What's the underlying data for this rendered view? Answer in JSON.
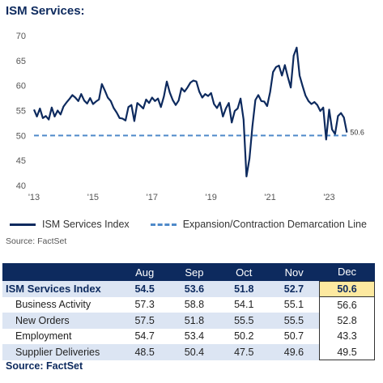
{
  "title": "ISM Services:",
  "chart_data": {
    "type": "line",
    "xlim": [
      2013,
      2023.7
    ],
    "ylim": [
      40,
      70
    ],
    "y_ticks": [
      40,
      45,
      50,
      55,
      60,
      65,
      70
    ],
    "x_ticks": [
      {
        "value": 2013,
        "label": "'13"
      },
      {
        "value": 2015,
        "label": "'15"
      },
      {
        "value": 2017,
        "label": "'17"
      },
      {
        "value": 2019,
        "label": "'19"
      },
      {
        "value": 2021,
        "label": "'21"
      },
      {
        "value": 2023,
        "label": "'23"
      }
    ],
    "series": [
      {
        "name": "ISM Services Index",
        "color": "#0d2a5e",
        "style": "solid",
        "x": [
          2013.0,
          2013.1,
          2013.2,
          2013.3,
          2013.4,
          2013.5,
          2013.6,
          2013.7,
          2013.8,
          2013.9,
          2014.0,
          2014.1,
          2014.2,
          2014.3,
          2014.4,
          2014.5,
          2014.6,
          2014.7,
          2014.8,
          2014.9,
          2015.0,
          2015.1,
          2015.2,
          2015.3,
          2015.4,
          2015.5,
          2015.6,
          2015.7,
          2015.8,
          2015.9,
          2016.0,
          2016.1,
          2016.2,
          2016.3,
          2016.4,
          2016.5,
          2016.6,
          2016.7,
          2016.8,
          2016.9,
          2017.0,
          2017.1,
          2017.2,
          2017.3,
          2017.4,
          2017.5,
          2017.6,
          2017.7,
          2017.8,
          2017.9,
          2018.0,
          2018.1,
          2018.2,
          2018.3,
          2018.4,
          2018.5,
          2018.6,
          2018.7,
          2018.8,
          2018.9,
          2019.0,
          2019.1,
          2019.2,
          2019.3,
          2019.4,
          2019.5,
          2019.6,
          2019.7,
          2019.8,
          2019.9,
          2020.0,
          2020.1,
          2020.2,
          2020.3,
          2020.4,
          2020.5,
          2020.6,
          2020.7,
          2020.8,
          2020.9,
          2021.0,
          2021.1,
          2021.2,
          2021.3,
          2021.4,
          2021.5,
          2021.6,
          2021.7,
          2021.8,
          2021.9,
          2022.0,
          2022.1,
          2022.2,
          2022.3,
          2022.4,
          2022.5,
          2022.6,
          2022.7,
          2022.8,
          2022.9,
          2023.0,
          2023.1,
          2023.2,
          2023.3,
          2023.4,
          2023.5,
          2023.6
        ],
        "y": [
          55.2,
          53.8,
          55.4,
          53.5,
          53.9,
          53.2,
          55.6,
          53.8,
          55.0,
          54.2,
          55.8,
          56.6,
          57.3,
          58.1,
          57.6,
          56.9,
          58.3,
          57.0,
          56.4,
          57.5,
          56.3,
          56.8,
          57.2,
          60.3,
          59.0,
          57.6,
          56.9,
          55.5,
          54.6,
          53.5,
          53.4,
          53.0,
          55.7,
          56.1,
          52.9,
          56.5,
          56.0,
          55.4,
          57.2,
          56.5,
          57.6,
          56.9,
          57.4,
          55.7,
          57.8,
          60.8,
          58.6,
          57.1,
          56.1,
          57.0,
          59.5,
          58.8,
          59.6,
          60.6,
          61.0,
          60.8,
          58.8,
          57.6,
          58.3,
          57.9,
          58.5,
          56.3,
          55.5,
          56.6,
          53.8,
          55.4,
          56.5,
          52.6,
          54.9,
          55.4,
          57.4,
          53.2,
          41.8,
          45.4,
          51.8,
          57.1,
          58.1,
          56.9,
          56.8,
          55.9,
          58.7,
          62.7,
          63.7,
          64.0,
          62.0,
          64.1,
          61.7,
          59.6,
          66.0,
          67.6,
          62.0,
          59.9,
          58.0,
          56.9,
          56.3,
          56.7,
          56.1,
          54.9,
          55.6,
          49.2,
          55.2,
          51.2,
          50.3,
          53.9,
          54.5,
          53.6,
          50.6
        ]
      },
      {
        "name": "Expansion/Contraction Demarcation Line",
        "color": "#4f8ac9",
        "style": "dashed",
        "y_constant": 50
      }
    ],
    "end_label": "50.6"
  },
  "chart_source": "Source: FactSet",
  "table": {
    "columns": [
      "",
      "Aug",
      "Sep",
      "Oct",
      "Nov",
      "Dec"
    ],
    "rows": [
      {
        "label": "ISM Services Index",
        "values": [
          "54.5",
          "53.6",
          "51.8",
          "52.7",
          "50.6"
        ]
      },
      {
        "label": "Business Activity",
        "values": [
          "57.3",
          "58.8",
          "54.1",
          "55.1",
          "56.6"
        ]
      },
      {
        "label": "New Orders",
        "values": [
          "57.5",
          "51.8",
          "55.5",
          "55.5",
          "52.8"
        ]
      },
      {
        "label": "Employment",
        "values": [
          "54.7",
          "53.4",
          "50.2",
          "50.7",
          "43.3"
        ]
      },
      {
        "label": "Supplier Deliveries",
        "values": [
          "48.5",
          "50.4",
          "47.5",
          "49.6",
          "49.5"
        ]
      }
    ]
  },
  "table_source": "Source: FactSet"
}
